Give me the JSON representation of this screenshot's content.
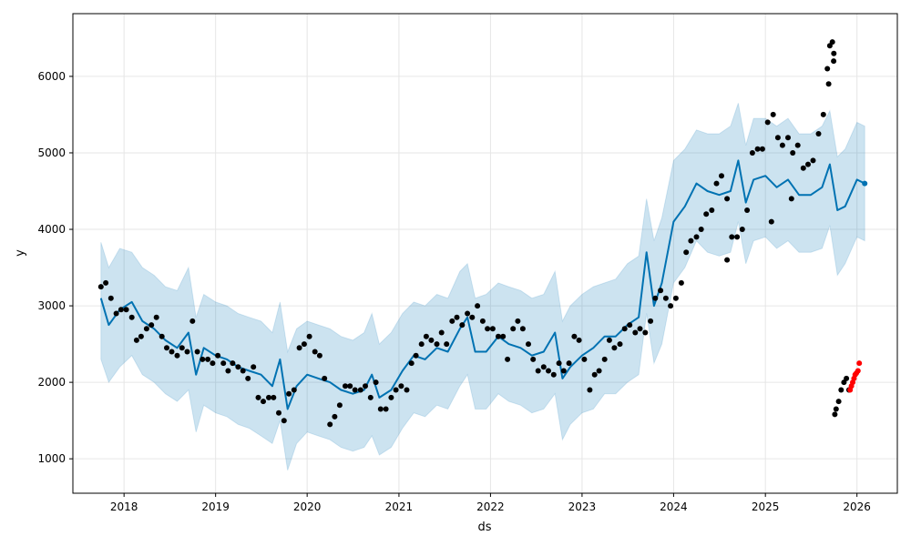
{
  "chart_data": {
    "type": "line",
    "xlabel": "ds",
    "ylabel": "y",
    "x_tick_labels": [
      "2018",
      "2019",
      "2020",
      "2021",
      "2022",
      "2023",
      "2024",
      "2025",
      "2026"
    ],
    "y_tick_labels": [
      "1000",
      "2000",
      "3000",
      "4000",
      "5000",
      "6000"
    ],
    "xlim": [
      "2017-06-11",
      "2026-06-11"
    ],
    "ylim": [
      550,
      6820
    ],
    "grid": true,
    "colors": {
      "forecast_line": "#0072B2",
      "uncertainty_band": "#0072B2",
      "observed_points": "#000000",
      "highlighted_points": "#ff0000",
      "grid": "#e6e6e6"
    },
    "series": [
      {
        "role": "forecast",
        "x": [
          "2017-10-01",
          "2017-11-01",
          "2017-12-15",
          "2018-02-01",
          "2018-03-15",
          "2018-05-01",
          "2018-06-15",
          "2018-08-01",
          "2018-09-15",
          "2018-10-15",
          "2018-11-15",
          "2019-01-01",
          "2019-02-15",
          "2019-04-01",
          "2019-05-15",
          "2019-07-01",
          "2019-08-15",
          "2019-09-15",
          "2019-10-15",
          "2019-11-20",
          "2020-01-01",
          "2020-02-15",
          "2020-04-01",
          "2020-05-15",
          "2020-07-01",
          "2020-08-15",
          "2020-09-15",
          "2020-10-15",
          "2020-12-01",
          "2021-01-15",
          "2021-03-01",
          "2021-04-15",
          "2021-06-01",
          "2021-07-15",
          "2021-09-01",
          "2021-10-01",
          "2021-11-01",
          "2021-12-15",
          "2022-02-01",
          "2022-03-15",
          "2022-05-01",
          "2022-06-15",
          "2022-08-01",
          "2022-09-15",
          "2022-10-15",
          "2022-11-15",
          "2023-01-01",
          "2023-02-15",
          "2023-04-01",
          "2023-05-15",
          "2023-07-01",
          "2023-08-15",
          "2023-09-15",
          "2023-10-15",
          "2023-11-15",
          "2024-01-01",
          "2024-02-15",
          "2024-04-01",
          "2024-05-15",
          "2024-07-01",
          "2024-08-15",
          "2024-09-15",
          "2024-10-15",
          "2024-11-15",
          "2025-01-01",
          "2025-02-15",
          "2025-04-01",
          "2025-05-15",
          "2025-07-01",
          "2025-08-15",
          "2025-09-15",
          "2025-10-15",
          "2025-11-15",
          "2026-01-01",
          "2026-02-01"
        ],
        "y": [
          3100,
          2750,
          2950,
          3050,
          2800,
          2700,
          2550,
          2450,
          2650,
          2100,
          2450,
          2350,
          2300,
          2200,
          2150,
          2100,
          1950,
          2300,
          1650,
          1950,
          2100,
          2050,
          2000,
          1900,
          1850,
          1900,
          2100,
          1800,
          1900,
          2150,
          2350,
          2300,
          2450,
          2400,
          2700,
          2850,
          2400,
          2400,
          2600,
          2500,
          2450,
          2350,
          2400,
          2650,
          2050,
          2200,
          2350,
          2450,
          2600,
          2600,
          2750,
          2850,
          3700,
          3000,
          3300,
          4100,
          4300,
          4600,
          4500,
          4450,
          4500,
          4900,
          4350,
          4650,
          4700,
          4550,
          4650,
          4450,
          4450,
          4550,
          4850,
          4250,
          4300,
          4650,
          4600
        ]
      },
      {
        "role": "uncertainty_band",
        "x": [
          "2017-10-01",
          "2017-11-01",
          "2017-12-15",
          "2018-02-01",
          "2018-03-15",
          "2018-05-01",
          "2018-06-15",
          "2018-08-01",
          "2018-09-15",
          "2018-10-15",
          "2018-11-15",
          "2019-01-01",
          "2019-02-15",
          "2019-04-01",
          "2019-05-15",
          "2019-07-01",
          "2019-08-15",
          "2019-09-15",
          "2019-10-15",
          "2019-11-20",
          "2020-01-01",
          "2020-02-15",
          "2020-04-01",
          "2020-05-15",
          "2020-07-01",
          "2020-08-15",
          "2020-09-15",
          "2020-10-15",
          "2020-12-01",
          "2021-01-15",
          "2021-03-01",
          "2021-04-15",
          "2021-06-01",
          "2021-07-15",
          "2021-09-01",
          "2021-10-01",
          "2021-11-01",
          "2021-12-15",
          "2022-02-01",
          "2022-03-15",
          "2022-05-01",
          "2022-06-15",
          "2022-08-01",
          "2022-09-15",
          "2022-10-15",
          "2022-11-15",
          "2023-01-01",
          "2023-02-15",
          "2023-04-01",
          "2023-05-15",
          "2023-07-01",
          "2023-08-15",
          "2023-09-15",
          "2023-10-15",
          "2023-11-15",
          "2024-01-01",
          "2024-02-15",
          "2024-04-01",
          "2024-05-15",
          "2024-07-01",
          "2024-08-15",
          "2024-09-15",
          "2024-10-15",
          "2024-11-15",
          "2025-01-01",
          "2025-02-15",
          "2025-04-01",
          "2025-05-15",
          "2025-07-01",
          "2025-08-15",
          "2025-09-15",
          "2025-10-15",
          "2025-11-15",
          "2026-01-01",
          "2026-02-01"
        ],
        "upper": [
          3830,
          3500,
          3750,
          3700,
          3500,
          3400,
          3250,
          3200,
          3500,
          2850,
          3150,
          3050,
          3000,
          2900,
          2850,
          2800,
          2650,
          3050,
          2400,
          2700,
          2800,
          2750,
          2700,
          2600,
          2550,
          2650,
          2900,
          2500,
          2650,
          2900,
          3050,
          3000,
          3150,
          3100,
          3450,
          3550,
          3100,
          3150,
          3300,
          3250,
          3200,
          3100,
          3150,
          3450,
          2800,
          3000,
          3150,
          3250,
          3300,
          3350,
          3550,
          3650,
          4400,
          3850,
          4150,
          4900,
          5050,
          5300,
          5250,
          5250,
          5350,
          5650,
          5100,
          5450,
          5450,
          5350,
          5450,
          5250,
          5250,
          5350,
          5550,
          4950,
          5050,
          5400,
          5350
        ],
        "lower": [
          2300,
          2000,
          2200,
          2350,
          2100,
          2000,
          1850,
          1750,
          1900,
          1350,
          1700,
          1600,
          1550,
          1450,
          1400,
          1300,
          1200,
          1500,
          850,
          1200,
          1350,
          1300,
          1250,
          1150,
          1100,
          1150,
          1300,
          1050,
          1150,
          1400,
          1600,
          1550,
          1700,
          1650,
          1950,
          2100,
          1650,
          1650,
          1850,
          1750,
          1700,
          1600,
          1650,
          1850,
          1250,
          1450,
          1600,
          1650,
          1850,
          1850,
          2000,
          2100,
          2900,
          2250,
          2500,
          3300,
          3500,
          3850,
          3700,
          3650,
          3700,
          4100,
          3550,
          3850,
          3900,
          3750,
          3850,
          3700,
          3700,
          3750,
          4050,
          3400,
          3550,
          3900,
          3850
        ]
      },
      {
        "role": "observed",
        "x": [
          "2017-10-01",
          "2017-10-20",
          "2017-11-10",
          "2017-12-01",
          "2017-12-20",
          "2018-01-10",
          "2018-02-01",
          "2018-02-20",
          "2018-03-10",
          "2018-04-01",
          "2018-04-20",
          "2018-05-10",
          "2018-06-01",
          "2018-06-20",
          "2018-07-10",
          "2018-08-01",
          "2018-08-20",
          "2018-09-10",
          "2018-10-01",
          "2018-10-20",
          "2018-11-10",
          "2018-12-01",
          "2018-12-20",
          "2019-01-10",
          "2019-02-01",
          "2019-02-20",
          "2019-03-10",
          "2019-04-01",
          "2019-04-20",
          "2019-05-10",
          "2019-06-01",
          "2019-06-20",
          "2019-07-10",
          "2019-08-01",
          "2019-08-20",
          "2019-09-10",
          "2019-10-01",
          "2019-10-20",
          "2019-11-10",
          "2019-12-01",
          "2019-12-20",
          "2020-01-10",
          "2020-02-01",
          "2020-02-20",
          "2020-03-10",
          "2020-04-01",
          "2020-04-20",
          "2020-05-10",
          "2020-06-01",
          "2020-06-20",
          "2020-07-10",
          "2020-08-01",
          "2020-08-20",
          "2020-09-10",
          "2020-10-01",
          "2020-10-20",
          "2020-11-10",
          "2020-12-01",
          "2020-12-20",
          "2021-01-10",
          "2021-02-01",
          "2021-02-20",
          "2021-03-10",
          "2021-04-01",
          "2021-04-20",
          "2021-05-10",
          "2021-06-01",
          "2021-06-20",
          "2021-07-10",
          "2021-08-01",
          "2021-08-20",
          "2021-09-10",
          "2021-10-01",
          "2021-10-20",
          "2021-11-10",
          "2021-12-01",
          "2021-12-20",
          "2022-01-10",
          "2022-02-01",
          "2022-02-20",
          "2022-03-10",
          "2022-04-01",
          "2022-04-20",
          "2022-05-10",
          "2022-06-01",
          "2022-06-20",
          "2022-07-10",
          "2022-08-01",
          "2022-08-20",
          "2022-09-10",
          "2022-10-01",
          "2022-10-20",
          "2022-11-10",
          "2022-12-01",
          "2022-12-20",
          "2023-01-10",
          "2023-02-01",
          "2023-02-20",
          "2023-03-10",
          "2023-04-01",
          "2023-04-20",
          "2023-05-10",
          "2023-06-01",
          "2023-06-20",
          "2023-07-10",
          "2023-08-01",
          "2023-08-20",
          "2023-09-10",
          "2023-10-01",
          "2023-10-20",
          "2023-11-10",
          "2023-12-01",
          "2023-12-20",
          "2024-01-10",
          "2024-02-01",
          "2024-02-20",
          "2024-03-10",
          "2024-04-01",
          "2024-04-20",
          "2024-05-10",
          "2024-06-01",
          "2024-06-20",
          "2024-07-10",
          "2024-08-01",
          "2024-08-20",
          "2024-09-10",
          "2024-10-01",
          "2024-10-20",
          "2024-11-10",
          "2024-12-01",
          "2024-12-20",
          "2025-01-10",
          "2025-02-01",
          "2025-02-20",
          "2025-03-10",
          "2025-04-01",
          "2025-04-20",
          "2025-05-10",
          "2025-06-01",
          "2025-06-20",
          "2025-07-10",
          "2025-08-01",
          "2025-08-20",
          "2025-09-10",
          "2025-10-01"
        ],
        "y": [
          3250,
          3300,
          3100,
          2900,
          2950,
          2950,
          2850,
          2550,
          2600,
          2700,
          2750,
          2850,
          2600,
          2450,
          2400,
          2350,
          2450,
          2400,
          2800,
          2400,
          2300,
          2300,
          2250,
          2350,
          2250,
          2150,
          2250,
          2200,
          2150,
          2050,
          2200,
          1800,
          1750,
          1800,
          1800,
          1600,
          1500,
          1850,
          1900,
          2450,
          2500,
          2600,
          2400,
          2350,
          2050,
          1450,
          1550,
          1700,
          1950,
          1950,
          1900,
          1900,
          1950,
          1800,
          2000,
          1650,
          1650,
          1800,
          1900,
          1950,
          1900,
          2250,
          2350,
          2500,
          2600,
          2550,
          2500,
          2650,
          2500,
          2800,
          2850,
          2750,
          2900,
          2850,
          3000,
          2800,
          2700,
          2700,
          2600,
          2600,
          2300,
          2700,
          2800,
          2700,
          2500,
          2300,
          2150,
          2200,
          2150,
          2100,
          2250,
          2150,
          2250,
          2600,
          2550,
          2300,
          1900,
          2100,
          2150,
          2300,
          2550,
          2450,
          2500,
          2700,
          2750,
          2650,
          2700,
          2650,
          2800,
          3100,
          3200,
          3100,
          3000,
          3100,
          3300,
          3700,
          3850,
          3900,
          4000,
          4200,
          4250,
          4600,
          4700,
          4400,
          3900,
          3900,
          4000,
          4250,
          5000,
          5050,
          5050,
          5400,
          5500,
          5200,
          5100,
          5200,
          5000,
          5100,
          4800,
          4850,
          4900,
          5250,
          5500,
          5900,
          6300
        ],
        "extra_x": [
          "2024-08-01",
          "2025-01-25",
          "2025-04-15",
          "2025-09-05",
          "2025-09-15",
          "2025-09-25",
          "2025-09-30",
          "2025-10-05",
          "2025-10-10",
          "2025-10-20",
          "2025-10-30",
          "2025-11-10",
          "2025-11-20",
          "2025-11-30"
        ],
        "extra_y": [
          3600,
          4100,
          4400,
          6100,
          6400,
          6450,
          6200,
          1580,
          1650,
          1750,
          1900,
          2000,
          2050,
          1900
        ]
      },
      {
        "role": "highlighted",
        "x": [
          "2025-12-05",
          "2025-12-10",
          "2025-12-15",
          "2025-12-20",
          "2025-12-25",
          "2025-12-30",
          "2026-01-05",
          "2026-01-10"
        ],
        "y": [
          1900,
          1950,
          2000,
          2050,
          2100,
          2120,
          2150,
          2250
        ]
      }
    ]
  }
}
